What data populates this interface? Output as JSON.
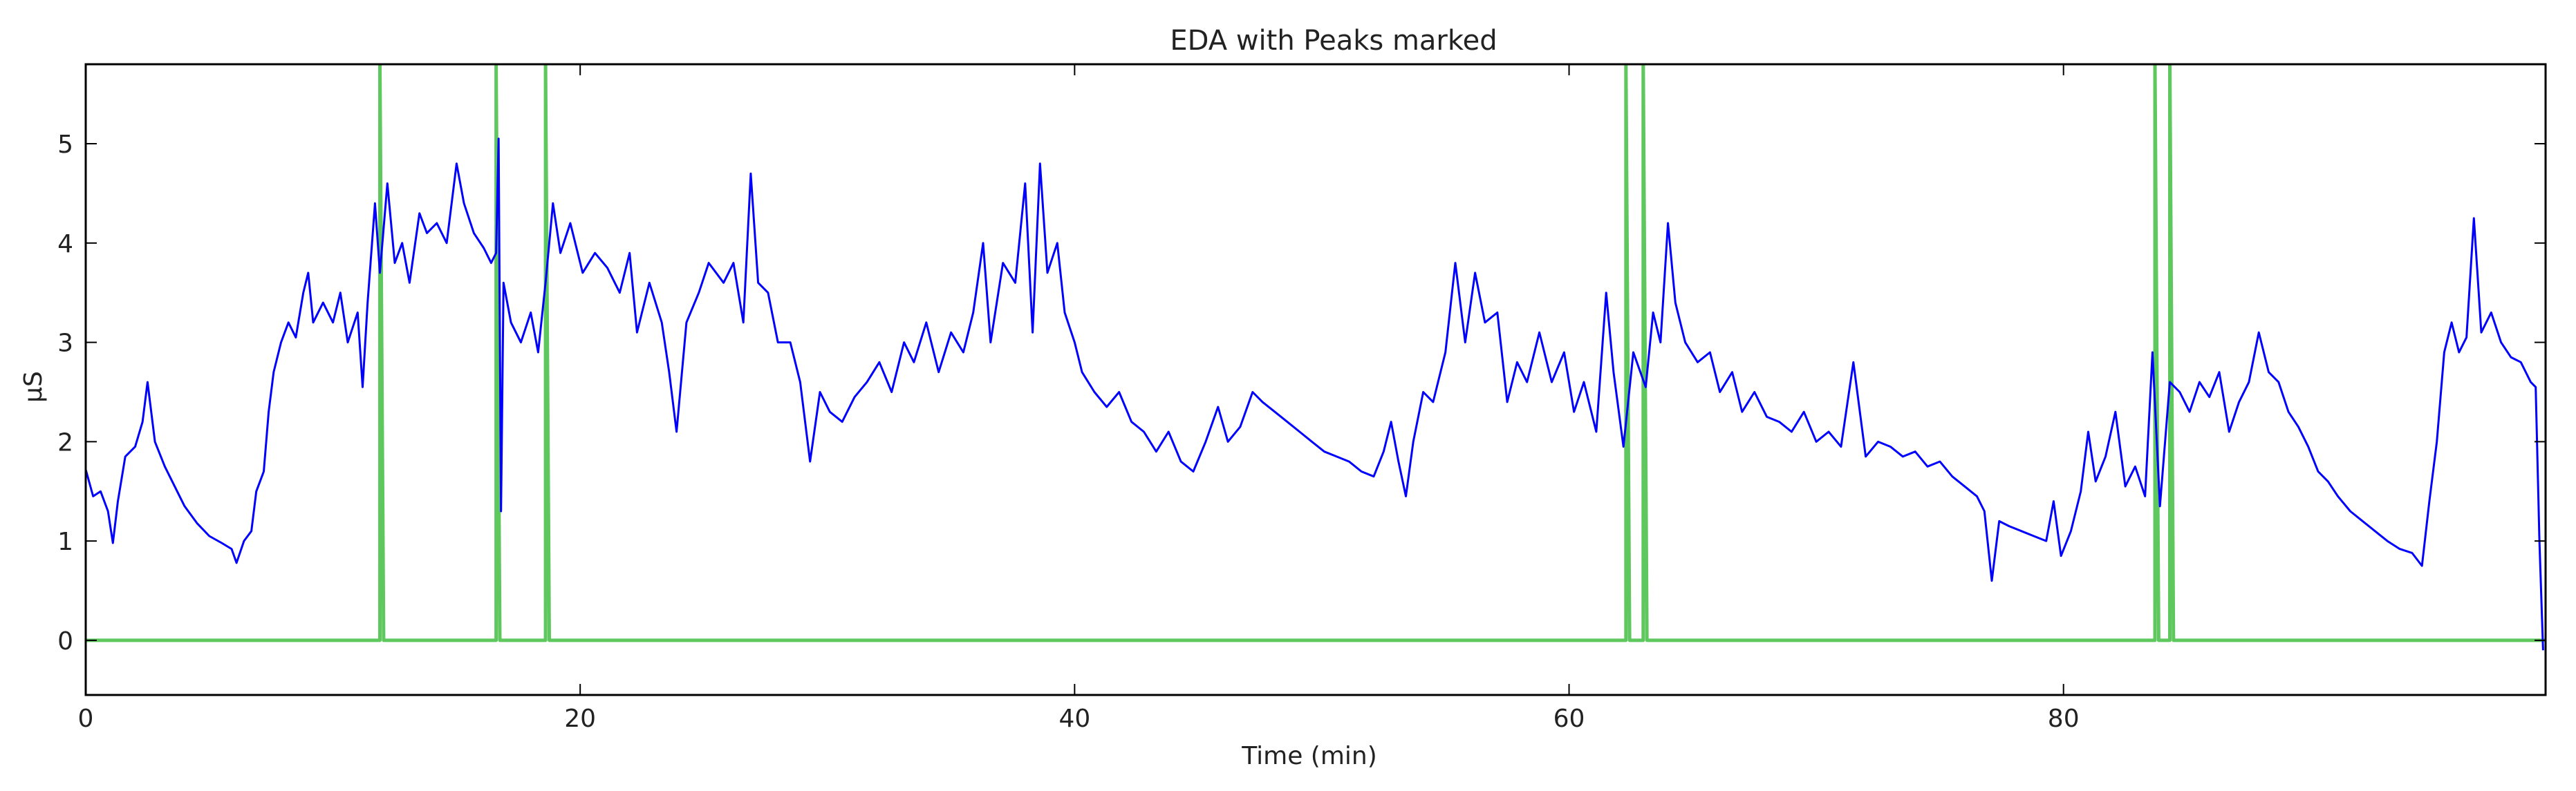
{
  "chart_data": {
    "type": "line",
    "title": "EDA with Peaks marked",
    "xlabel": "Time (min)",
    "ylabel": "μS",
    "xlim": [
      0,
      99.5
    ],
    "ylim": [
      -0.55,
      5.8
    ],
    "x_ticks": [
      0,
      20,
      40,
      60,
      80
    ],
    "y_ticks": [
      0,
      1,
      2,
      3,
      4,
      5
    ],
    "grid": false,
    "legend": "none",
    "series": [
      {
        "color": "#0000ff",
        "points": [
          [
            0,
            1.72
          ],
          [
            0.3,
            1.45
          ],
          [
            0.6,
            1.5
          ],
          [
            0.9,
            1.3
          ],
          [
            1.1,
            0.98
          ],
          [
            1.3,
            1.4
          ],
          [
            1.6,
            1.85
          ],
          [
            2.0,
            1.95
          ],
          [
            2.3,
            2.2
          ],
          [
            2.5,
            2.6
          ],
          [
            2.8,
            2.0
          ],
          [
            3.2,
            1.75
          ],
          [
            3.6,
            1.55
          ],
          [
            4.0,
            1.35
          ],
          [
            4.5,
            1.18
          ],
          [
            5.0,
            1.05
          ],
          [
            5.5,
            0.98
          ],
          [
            5.9,
            0.92
          ],
          [
            6.1,
            0.78
          ],
          [
            6.4,
            1.0
          ],
          [
            6.7,
            1.1
          ],
          [
            6.9,
            1.5
          ],
          [
            7.2,
            1.7
          ],
          [
            7.4,
            2.3
          ],
          [
            7.6,
            2.7
          ],
          [
            7.9,
            3.0
          ],
          [
            8.2,
            3.2
          ],
          [
            8.5,
            3.05
          ],
          [
            8.8,
            3.5
          ],
          [
            9.0,
            3.7
          ],
          [
            9.2,
            3.2
          ],
          [
            9.6,
            3.4
          ],
          [
            10.0,
            3.2
          ],
          [
            10.3,
            3.5
          ],
          [
            10.6,
            3.0
          ],
          [
            11.0,
            3.3
          ],
          [
            11.2,
            2.55
          ],
          [
            11.4,
            3.4
          ],
          [
            11.7,
            4.4
          ],
          [
            11.9,
            3.7
          ],
          [
            12.2,
            4.6
          ],
          [
            12.5,
            3.8
          ],
          [
            12.8,
            4.0
          ],
          [
            13.1,
            3.6
          ],
          [
            13.5,
            4.3
          ],
          [
            13.8,
            4.1
          ],
          [
            14.2,
            4.2
          ],
          [
            14.6,
            4.0
          ],
          [
            15.0,
            4.8
          ],
          [
            15.3,
            4.4
          ],
          [
            15.7,
            4.1
          ],
          [
            16.1,
            3.95
          ],
          [
            16.4,
            3.8
          ],
          [
            16.6,
            3.9
          ],
          [
            16.7,
            5.05
          ],
          [
            16.8,
            1.3
          ],
          [
            16.9,
            3.6
          ],
          [
            17.2,
            3.2
          ],
          [
            17.6,
            3.0
          ],
          [
            18.0,
            3.3
          ],
          [
            18.3,
            2.9
          ],
          [
            18.6,
            3.6
          ],
          [
            18.9,
            4.4
          ],
          [
            19.2,
            3.9
          ],
          [
            19.6,
            4.2
          ],
          [
            20.1,
            3.7
          ],
          [
            20.6,
            3.9
          ],
          [
            21.1,
            3.75
          ],
          [
            21.6,
            3.5
          ],
          [
            22.0,
            3.9
          ],
          [
            22.3,
            3.1
          ],
          [
            22.8,
            3.6
          ],
          [
            23.3,
            3.2
          ],
          [
            23.6,
            2.7
          ],
          [
            23.9,
            2.1
          ],
          [
            24.3,
            3.2
          ],
          [
            24.8,
            3.5
          ],
          [
            25.2,
            3.8
          ],
          [
            25.8,
            3.6
          ],
          [
            26.2,
            3.8
          ],
          [
            26.6,
            3.2
          ],
          [
            26.9,
            4.7
          ],
          [
            27.2,
            3.6
          ],
          [
            27.6,
            3.5
          ],
          [
            28.0,
            3.0
          ],
          [
            28.5,
            3.0
          ],
          [
            28.9,
            2.6
          ],
          [
            29.3,
            1.8
          ],
          [
            29.7,
            2.5
          ],
          [
            30.1,
            2.3
          ],
          [
            30.6,
            2.2
          ],
          [
            31.1,
            2.45
          ],
          [
            31.6,
            2.6
          ],
          [
            32.1,
            2.8
          ],
          [
            32.6,
            2.5
          ],
          [
            33.1,
            3.0
          ],
          [
            33.5,
            2.8
          ],
          [
            34.0,
            3.2
          ],
          [
            34.5,
            2.7
          ],
          [
            35.0,
            3.1
          ],
          [
            35.5,
            2.9
          ],
          [
            35.9,
            3.3
          ],
          [
            36.3,
            4.0
          ],
          [
            36.6,
            3.0
          ],
          [
            37.1,
            3.8
          ],
          [
            37.6,
            3.6
          ],
          [
            38.0,
            4.6
          ],
          [
            38.3,
            3.1
          ],
          [
            38.6,
            4.8
          ],
          [
            38.9,
            3.7
          ],
          [
            39.3,
            4.0
          ],
          [
            39.6,
            3.3
          ],
          [
            40.0,
            3.0
          ],
          [
            40.3,
            2.7
          ],
          [
            40.8,
            2.5
          ],
          [
            41.3,
            2.35
          ],
          [
            41.8,
            2.5
          ],
          [
            42.3,
            2.2
          ],
          [
            42.8,
            2.1
          ],
          [
            43.3,
            1.9
          ],
          [
            43.8,
            2.1
          ],
          [
            44.3,
            1.8
          ],
          [
            44.8,
            1.7
          ],
          [
            45.3,
            2.0
          ],
          [
            45.8,
            2.35
          ],
          [
            46.2,
            2.0
          ],
          [
            46.7,
            2.15
          ],
          [
            47.2,
            2.5
          ],
          [
            47.6,
            2.4
          ],
          [
            48.1,
            2.3
          ],
          [
            48.6,
            2.2
          ],
          [
            49.1,
            2.1
          ],
          [
            49.6,
            2.0
          ],
          [
            50.1,
            1.9
          ],
          [
            50.6,
            1.85
          ],
          [
            51.1,
            1.8
          ],
          [
            51.6,
            1.7
          ],
          [
            52.1,
            1.65
          ],
          [
            52.5,
            1.9
          ],
          [
            52.8,
            2.2
          ],
          [
            53.1,
            1.8
          ],
          [
            53.4,
            1.45
          ],
          [
            53.7,
            2.0
          ],
          [
            54.1,
            2.5
          ],
          [
            54.5,
            2.4
          ],
          [
            55.0,
            2.9
          ],
          [
            55.4,
            3.8
          ],
          [
            55.8,
            3.0
          ],
          [
            56.2,
            3.7
          ],
          [
            56.6,
            3.2
          ],
          [
            57.1,
            3.3
          ],
          [
            57.5,
            2.4
          ],
          [
            57.9,
            2.8
          ],
          [
            58.3,
            2.6
          ],
          [
            58.8,
            3.1
          ],
          [
            59.3,
            2.6
          ],
          [
            59.8,
            2.9
          ],
          [
            60.2,
            2.3
          ],
          [
            60.6,
            2.6
          ],
          [
            61.1,
            2.1
          ],
          [
            61.5,
            3.5
          ],
          [
            61.8,
            2.7
          ],
          [
            62.2,
            1.95
          ],
          [
            62.6,
            2.9
          ],
          [
            63.1,
            2.55
          ],
          [
            63.4,
            3.3
          ],
          [
            63.7,
            3.0
          ],
          [
            64.0,
            4.2
          ],
          [
            64.3,
            3.4
          ],
          [
            64.7,
            3.0
          ],
          [
            65.2,
            2.8
          ],
          [
            65.7,
            2.9
          ],
          [
            66.1,
            2.5
          ],
          [
            66.6,
            2.7
          ],
          [
            67.0,
            2.3
          ],
          [
            67.5,
            2.5
          ],
          [
            68.0,
            2.25
          ],
          [
            68.5,
            2.2
          ],
          [
            69.0,
            2.1
          ],
          [
            69.5,
            2.3
          ],
          [
            70.0,
            2.0
          ],
          [
            70.5,
            2.1
          ],
          [
            71.0,
            1.95
          ],
          [
            71.5,
            2.8
          ],
          [
            72.0,
            1.85
          ],
          [
            72.5,
            2.0
          ],
          [
            73.0,
            1.95
          ],
          [
            73.5,
            1.85
          ],
          [
            74.0,
            1.9
          ],
          [
            74.5,
            1.75
          ],
          [
            75.0,
            1.8
          ],
          [
            75.5,
            1.65
          ],
          [
            76.0,
            1.55
          ],
          [
            76.5,
            1.45
          ],
          [
            76.8,
            1.3
          ],
          [
            77.1,
            0.6
          ],
          [
            77.4,
            1.2
          ],
          [
            77.8,
            1.15
          ],
          [
            78.3,
            1.1
          ],
          [
            78.8,
            1.05
          ],
          [
            79.3,
            1.0
          ],
          [
            79.6,
            1.4
          ],
          [
            79.9,
            0.85
          ],
          [
            80.3,
            1.1
          ],
          [
            80.7,
            1.5
          ],
          [
            81.0,
            2.1
          ],
          [
            81.3,
            1.6
          ],
          [
            81.7,
            1.85
          ],
          [
            82.1,
            2.3
          ],
          [
            82.5,
            1.55
          ],
          [
            82.9,
            1.75
          ],
          [
            83.3,
            1.45
          ],
          [
            83.6,
            2.9
          ],
          [
            83.9,
            1.35
          ],
          [
            84.3,
            2.6
          ],
          [
            84.7,
            2.5
          ],
          [
            85.1,
            2.3
          ],
          [
            85.5,
            2.6
          ],
          [
            85.9,
            2.45
          ],
          [
            86.3,
            2.7
          ],
          [
            86.7,
            2.1
          ],
          [
            87.1,
            2.4
          ],
          [
            87.5,
            2.6
          ],
          [
            87.9,
            3.1
          ],
          [
            88.3,
            2.7
          ],
          [
            88.7,
            2.6
          ],
          [
            89.1,
            2.3
          ],
          [
            89.5,
            2.15
          ],
          [
            89.9,
            1.95
          ],
          [
            90.3,
            1.7
          ],
          [
            90.7,
            1.6
          ],
          [
            91.1,
            1.45
          ],
          [
            91.6,
            1.3
          ],
          [
            92.1,
            1.2
          ],
          [
            92.6,
            1.1
          ],
          [
            93.1,
            1.0
          ],
          [
            93.6,
            0.92
          ],
          [
            94.1,
            0.88
          ],
          [
            94.5,
            0.75
          ],
          [
            94.8,
            1.4
          ],
          [
            95.1,
            2.0
          ],
          [
            95.4,
            2.9
          ],
          [
            95.7,
            3.2
          ],
          [
            96.0,
            2.9
          ],
          [
            96.3,
            3.05
          ],
          [
            96.6,
            4.25
          ],
          [
            96.9,
            3.1
          ],
          [
            97.3,
            3.3
          ],
          [
            97.7,
            3.0
          ],
          [
            98.1,
            2.85
          ],
          [
            98.5,
            2.8
          ],
          [
            98.9,
            2.6
          ],
          [
            99.1,
            2.55
          ],
          [
            99.25,
            1.0
          ],
          [
            99.4,
            -0.1
          ]
        ]
      },
      {
        "color": "#5ec85e",
        "points": [
          [
            0,
            0
          ],
          [
            11.9,
            0
          ],
          [
            11.9,
            5.8
          ],
          [
            12.05,
            0
          ],
          [
            16.6,
            0
          ],
          [
            16.6,
            5.8
          ],
          [
            16.75,
            0
          ],
          [
            18.6,
            0
          ],
          [
            18.6,
            5.8
          ],
          [
            18.75,
            0
          ],
          [
            62.3,
            0
          ],
          [
            62.3,
            5.8
          ],
          [
            62.45,
            0
          ],
          [
            63.0,
            0
          ],
          [
            63.0,
            5.8
          ],
          [
            63.15,
            0
          ],
          [
            83.7,
            0
          ],
          [
            83.7,
            5.8
          ],
          [
            83.85,
            0
          ],
          [
            84.3,
            0
          ],
          [
            84.3,
            5.8
          ],
          [
            84.45,
            0
          ],
          [
            99.5,
            0
          ]
        ]
      }
    ]
  }
}
